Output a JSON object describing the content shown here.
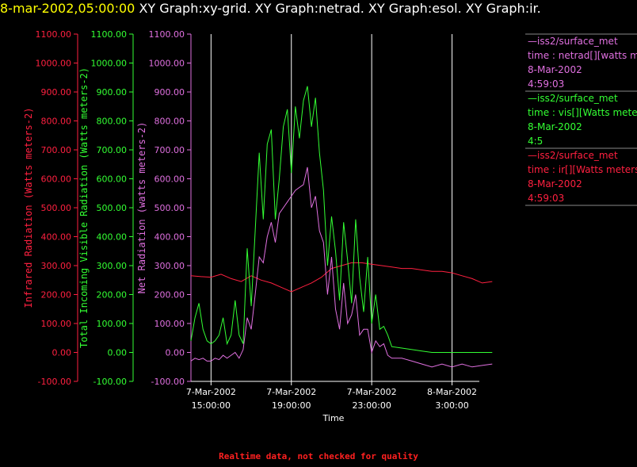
{
  "header": {
    "timestamp": "8-mar-2002,05:00:00",
    "graphs": "XY Graph:xy-grid.  XY Graph:netrad.  XY Graph:esol.  XY Graph:ir."
  },
  "footer": "Realtime data, not checked for quality",
  "colors": {
    "ir": "#ff2040",
    "vis": "#33ff33",
    "net": "#e070e0",
    "grid": "#ffffff",
    "background": "#000000"
  },
  "chart_data": {
    "type": "line",
    "xlabel": "Time",
    "x_ticks": [
      {
        "t": 0,
        "date": "7-Mar-2002",
        "time": "15:00:00"
      },
      {
        "t": 4,
        "date": "7-Mar-2002",
        "time": "19:00:00"
      },
      {
        "t": 8,
        "date": "7-Mar-2002",
        "time": "23:00:00"
      },
      {
        "t": 12,
        "date": "8-Mar-2002",
        "time": "3:00:00"
      }
    ],
    "xlim": [
      "7-Mar-2002 14:00",
      "8-Mar-2002 05:00"
    ],
    "grid": "vertical",
    "y_axes": [
      {
        "key": "ir",
        "label": "Infrared Radiation (Watts meters-2)",
        "ylim": [
          -100,
          1100
        ],
        "ticks": [
          "1100.00",
          "1000.00",
          "900.00",
          "800.00",
          "700.00",
          "600.00",
          "500.00",
          "400.00",
          "300.00",
          "200.00",
          "100.00",
          "0.00",
          "-100.00"
        ]
      },
      {
        "key": "vis",
        "label": "Total Incoming Visible Radiation (Watts meters-2)",
        "ylim": [
          -100,
          1100
        ],
        "ticks": [
          "1100.00",
          "1000.00",
          "900.00",
          "800.00",
          "700.00",
          "600.00",
          "500.00",
          "400.00",
          "300.00",
          "200.00",
          "100.00",
          "0.00",
          "-100.00"
        ]
      },
      {
        "key": "net",
        "label": "Net Radiation (watts meters-2)",
        "ylim": [
          -100,
          1100
        ],
        "ticks": [
          "1100.00",
          "1000.00",
          "900.00",
          "800.00",
          "700.00",
          "600.00",
          "500.00",
          "400.00",
          "300.00",
          "200.00",
          "100.00",
          "0.00",
          "-100.00"
        ]
      }
    ],
    "series": [
      {
        "key": "ir",
        "x_hours_from_1500": [
          -1.0,
          -0.5,
          0.0,
          0.5,
          1.0,
          1.5,
          2.0,
          2.5,
          3.0,
          3.5,
          4.0,
          4.5,
          5.0,
          5.5,
          6.0,
          6.5,
          7.0,
          7.5,
          8.0,
          8.5,
          9.0,
          9.5,
          10.0,
          10.5,
          11.0,
          11.5,
          12.0,
          12.5,
          13.0,
          13.5,
          14.0
        ],
        "values": [
          265,
          262,
          260,
          270,
          255,
          245,
          265,
          250,
          240,
          225,
          210,
          225,
          240,
          260,
          290,
          300,
          310,
          310,
          305,
          300,
          295,
          290,
          290,
          285,
          280,
          280,
          275,
          265,
          255,
          240,
          245
        ]
      },
      {
        "key": "vis",
        "x_hours_from_1500": [
          -1.0,
          -0.8,
          -0.6,
          -0.4,
          -0.2,
          0.0,
          0.2,
          0.4,
          0.6,
          0.8,
          1.0,
          1.2,
          1.4,
          1.6,
          1.8,
          2.0,
          2.2,
          2.4,
          2.6,
          2.8,
          3.0,
          3.2,
          3.4,
          3.6,
          3.8,
          4.0,
          4.2,
          4.4,
          4.6,
          4.8,
          5.0,
          5.2,
          5.4,
          5.6,
          5.8,
          6.0,
          6.2,
          6.4,
          6.6,
          6.8,
          7.0,
          7.2,
          7.4,
          7.6,
          7.8,
          8.0,
          8.2,
          8.4,
          8.6,
          8.8,
          9.0,
          9.5,
          10.0,
          10.5,
          11.0,
          12.0,
          13.0,
          14.0
        ],
        "values": [
          40,
          120,
          170,
          80,
          40,
          30,
          40,
          60,
          120,
          30,
          60,
          180,
          60,
          30,
          360,
          160,
          420,
          690,
          460,
          720,
          770,
          460,
          600,
          780,
          840,
          620,
          850,
          740,
          870,
          920,
          780,
          880,
          690,
          560,
          300,
          470,
          350,
          180,
          450,
          320,
          170,
          460,
          260,
          140,
          330,
          100,
          200,
          80,
          90,
          60,
          20,
          15,
          10,
          5,
          0,
          0,
          0,
          0
        ]
      },
      {
        "key": "net",
        "x_hours_from_1500": [
          -1.0,
          -0.8,
          -0.6,
          -0.4,
          -0.2,
          0.0,
          0.2,
          0.4,
          0.6,
          0.8,
          1.0,
          1.2,
          1.4,
          1.6,
          1.8,
          2.0,
          2.2,
          2.4,
          2.6,
          2.8,
          3.0,
          3.2,
          3.4,
          3.6,
          3.8,
          4.0,
          4.2,
          4.4,
          4.6,
          4.8,
          5.0,
          5.2,
          5.4,
          5.6,
          5.8,
          6.0,
          6.2,
          6.4,
          6.6,
          6.8,
          7.0,
          7.2,
          7.4,
          7.6,
          7.8,
          8.0,
          8.2,
          8.4,
          8.6,
          8.8,
          9.0,
          9.5,
          10.0,
          10.5,
          11.0,
          11.5,
          12.0,
          12.5,
          13.0,
          13.5,
          14.0
        ],
        "values": [
          -30,
          -20,
          -25,
          -20,
          -30,
          -30,
          -20,
          -25,
          -10,
          -20,
          -10,
          0,
          -20,
          10,
          120,
          80,
          200,
          330,
          310,
          400,
          450,
          380,
          480,
          500,
          520,
          540,
          560,
          570,
          580,
          640,
          500,
          540,
          420,
          380,
          200,
          330,
          150,
          80,
          240,
          100,
          130,
          200,
          60,
          80,
          80,
          0,
          40,
          20,
          30,
          -10,
          -20,
          -20,
          -30,
          -40,
          -50,
          -40,
          -50,
          -40,
          -50,
          -45,
          -40
        ]
      }
    ]
  },
  "legend": [
    {
      "key": "net",
      "source": "iss2/surface_met",
      "var": "time : netrad[][watts me",
      "date": "8-Mar-2002",
      "time": "4:59:03"
    },
    {
      "key": "vis",
      "source": "iss2/surface_met",
      "var": "time : vis[][Watts mete",
      "date": "8-Mar-2002",
      "time": "4:5"
    },
    {
      "key": "ir",
      "source": "iss2/surface_met",
      "var": "time : ir[][Watts meters",
      "date": "8-Mar-2002",
      "time": "4:59:03"
    }
  ]
}
